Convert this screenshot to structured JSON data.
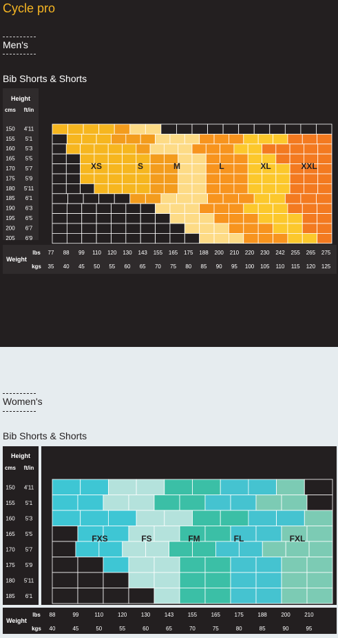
{
  "brand": "Cycle pro",
  "mens": {
    "section": "Men's",
    "subtitle": "Bib Shorts & Shorts"
  },
  "womens": {
    "section": "Women's",
    "subtitle": "Bib Shorts & Shorts"
  },
  "colors": {
    "dark_bg": "#231f20",
    "light_bg": "#e6ecef",
    "brand": "#f5b523",
    "grid_line": "#ffffff",
    "divider": "#a7a9ac"
  },
  "chart_data": [
    {
      "type": "heatmap",
      "title": "Bib Shorts & Shorts",
      "height_header": "Height",
      "height_cols": [
        "cms",
        "ft/in"
      ],
      "heights_cm": [
        "150",
        "155",
        "160",
        "165",
        "170",
        "175",
        "180",
        "185",
        "190",
        "195",
        "200",
        "205"
      ],
      "heights_ft": [
        "4'11",
        "5'1",
        "5'3",
        "5'5",
        "5'7",
        "5'9",
        "5'11",
        "6'1",
        "6'3",
        "6'5",
        "6'7",
        "6'9"
      ],
      "weight_label": "Weight",
      "unit_lbs": "lbs",
      "unit_kgs": "kgs",
      "weights_lbs": [
        "77",
        "88",
        "99",
        "110",
        "120",
        "130",
        "143",
        "155",
        "165",
        "175",
        "188",
        "200",
        "210",
        "220",
        "230",
        "242",
        "255",
        "265",
        "275"
      ],
      "weights_kgs": [
        "35",
        "40",
        "45",
        "50",
        "55",
        "60",
        "65",
        "70",
        "75",
        "80",
        "85",
        "90",
        "95",
        "100",
        "105",
        "110",
        "115",
        "120",
        "125"
      ],
      "sizes": [
        "XS",
        "S",
        "M",
        "L",
        "XL",
        "XXL"
      ],
      "size_colors": [
        "#f6b61f",
        "#f39c1d",
        "#fddb86",
        "#f7941e",
        "#fcc82c",
        "#f37a20"
      ],
      "cells": [
        "0000122...........",
        "#000111222333444555",
        "#0000012223334455555",
        "##000001122333445555",
        "##000001122333444555",
        "##000001122333444555",
        "###00001122333444555",
        "#####1122233344555",
        "#######222333444555",
        "########22233344455",
        "#########2223334455",
        "##########222333445"
      ]
    },
    {
      "type": "heatmap",
      "title": "Bib Shorts & Shorts",
      "height_header": "Height",
      "height_cols": [
        "cms",
        "ft/in"
      ],
      "heights_cm": [
        "150",
        "155",
        "160",
        "165",
        "170",
        "175",
        "180",
        "185"
      ],
      "heights_ft": [
        "4'11",
        "5'1",
        "5'3",
        "5'5",
        "5'7",
        "5'9",
        "5'11",
        "6'1"
      ],
      "weight_label": "Weight",
      "unit_lbs": "lbs",
      "unit_kgs": "kgs",
      "weights_lbs": [
        "88",
        "99",
        "110",
        "120",
        "130",
        "143",
        "155",
        "165",
        "175",
        "188",
        "200",
        "210"
      ],
      "weights_kgs": [
        "40",
        "45",
        "50",
        "55",
        "60",
        "65",
        "70",
        "75",
        "80",
        "85",
        "90",
        "95"
      ],
      "sizes": [
        "FXS",
        "FS",
        "FM",
        "FL",
        "FXL"
      ],
      "size_colors": [
        "#3ec6d4",
        "#b4e2dc",
        "#3bbfa6",
        "#45c3d0",
        "#7ccbb4"
      ],
      "cells": [
        "001122334#",
        "0011223344#",
        "0001122334",
        "#0011223344",
        "#00112233444",
        "##011223344",
        "###11223344",
        "####1223344"
      ]
    }
  ]
}
